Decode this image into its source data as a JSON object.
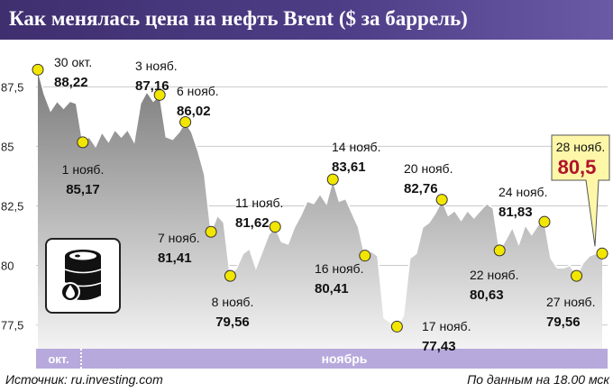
{
  "header": {
    "title": "Как менялась цена на нефть Brent ($ за баррель)"
  },
  "footer": {
    "source": "Источник: ru.investing.com",
    "note": "По данным на 18.00 мск"
  },
  "colors": {
    "header_bg": "#46367a",
    "month_bar": "#b7a9dc",
    "area_top": "#7a7a7a",
    "area_bottom": "#f3f3f3",
    "marker": "#f2e600",
    "highlight_bg": "#fff7a8",
    "highlight_value": "#b0122b"
  },
  "icon": {
    "name": "oil-barrel-icon"
  },
  "chart_data": {
    "type": "area",
    "ylim": [
      76.5,
      88.8
    ],
    "yticks": [
      77.5,
      80,
      82.5,
      85,
      87.5
    ],
    "ytick_labels": [
      "77,5",
      "80",
      "82,5",
      "85",
      "87,5"
    ],
    "grid": true,
    "months": [
      {
        "label": "окт."
      },
      {
        "label": "ноябрь"
      }
    ],
    "series": [
      {
        "values": [
          88.22,
          87.2,
          86.5,
          86.9,
          86.6,
          86.9,
          86.8,
          85.17,
          85.4,
          85.0,
          85.6,
          85.2,
          85.7,
          85.4,
          85.7,
          85.2,
          86.8,
          87.3,
          86.9,
          87.16,
          85.4,
          85.3,
          85.6,
          86.02,
          85.6,
          84.8,
          83.8,
          81.41,
          82.1,
          81.8,
          79.56,
          79.9,
          80.5,
          80.7,
          79.9,
          80.6,
          81.3,
          81.62,
          81.0,
          80.9,
          81.6,
          82.1,
          82.7,
          82.6,
          83.0,
          82.6,
          83.61,
          82.7,
          82.8,
          82.2,
          81.6,
          80.41,
          80.6,
          80.4,
          77.8,
          77.6,
          77.43,
          77.9,
          80.3,
          80.5,
          81.6,
          81.8,
          82.2,
          82.76,
          82.1,
          82.3,
          81.9,
          82.3,
          82.0,
          82.3,
          82.6,
          82.4,
          80.63,
          81.1,
          81.6,
          80.9,
          81.7,
          81.3,
          81.7,
          81.83,
          80.3,
          79.9,
          79.9,
          80.0,
          79.56,
          80.1,
          80.4,
          80.5,
          80.5
        ]
      }
    ],
    "annotations": [
      {
        "date": "30 окт.",
        "value": "88,22"
      },
      {
        "date": "1 нояб.",
        "value": "85,17"
      },
      {
        "date": "3 нояб.",
        "value": "87,16"
      },
      {
        "date": "6 нояб.",
        "value": "86,02"
      },
      {
        "date": "7 нояб.",
        "value": "81,41"
      },
      {
        "date": "8 нояб.",
        "value": "79,56"
      },
      {
        "date": "11 нояб.",
        "value": "81,62"
      },
      {
        "date": "14 нояб.",
        "value": "83,61"
      },
      {
        "date": "16 нояб.",
        "value": "80,41"
      },
      {
        "date": "17 нояб.",
        "value": "77,43"
      },
      {
        "date": "20 нояб.",
        "value": "82,76"
      },
      {
        "date": "22 нояб.",
        "value": "80,63"
      },
      {
        "date": "24 нояб.",
        "value": "81,83"
      },
      {
        "date": "27 нояб.",
        "value": "79,56"
      },
      {
        "date": "28 нояб.",
        "value": "80,5"
      }
    ]
  }
}
